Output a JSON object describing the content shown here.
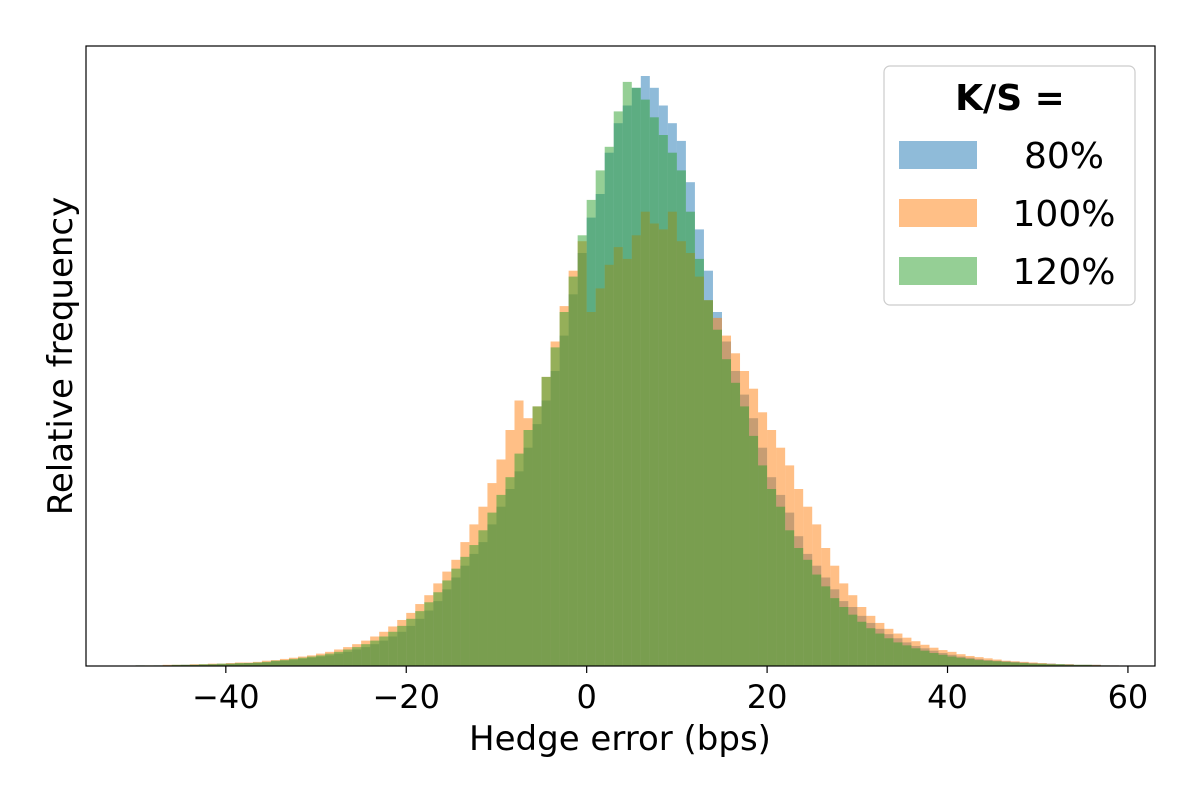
{
  "chart_data": {
    "type": "histogram",
    "xlabel": "Hedge error (bps)",
    "ylabel": "Relative frequency",
    "xlim": [
      -55.5,
      63
    ],
    "ylim": [
      0,
      1.0
    ],
    "xticks": [
      -40,
      -20,
      0,
      20,
      40,
      60
    ],
    "xtick_labels": [
      "−40",
      "−20",
      "0",
      "20",
      "40",
      "60"
    ],
    "yticks_visible": false,
    "grid": false,
    "bin_width": 1.0,
    "legend": {
      "title": "K/S =",
      "location": "upper-right"
    },
    "series": [
      {
        "name": "80%",
        "color": "#1f77b4",
        "opacity": 0.5,
        "x_start": -50,
        "values": [
          0.001,
          0,
          0.001,
          0.001,
          0.001,
          0.002,
          0.002,
          0.002,
          0.003,
          0.003,
          0.004,
          0.004,
          0.005,
          0.005,
          0.006,
          0.008,
          0.009,
          0.01,
          0.012,
          0.014,
          0.016,
          0.018,
          0.021,
          0.024,
          0.028,
          0.032,
          0.037,
          0.043,
          0.05,
          0.058,
          0.068,
          0.08,
          0.094,
          0.11,
          0.13,
          0.15,
          0.17,
          0.19,
          0.21,
          0.24,
          0.27,
          0.3,
          0.33,
          0.37,
          0.41,
          0.45,
          0.5,
          0.56,
          0.63,
          0.7,
          0.76,
          0.8,
          0.87,
          0.92,
          0.95,
          0.98,
          1.0,
          0.98,
          0.95,
          0.92,
          0.89,
          0.82,
          0.74,
          0.67,
          0.6,
          0.55,
          0.5,
          0.46,
          0.42,
          0.37,
          0.32,
          0.29,
          0.26,
          0.22,
          0.19,
          0.17,
          0.15,
          0.13,
          0.11,
          0.1,
          0.085,
          0.073,
          0.063,
          0.054,
          0.047,
          0.04,
          0.034,
          0.03,
          0.026,
          0.022,
          0.019,
          0.016,
          0.014,
          0.012,
          0.01,
          0.009,
          0.008,
          0.007,
          0.006,
          0.005,
          0.004,
          0.004,
          0.003,
          0.003,
          0.002,
          0.002,
          0.002,
          0.001,
          0.001
        ]
      },
      {
        "name": "100%",
        "color": "#ff7f0e",
        "opacity": 0.5,
        "x_start": -50,
        "values": [
          0.001,
          0.001,
          0.001,
          0.002,
          0.002,
          0.002,
          0.003,
          0.003,
          0.004,
          0.004,
          0.005,
          0.006,
          0.006,
          0.007,
          0.009,
          0.01,
          0.012,
          0.014,
          0.016,
          0.018,
          0.021,
          0.024,
          0.028,
          0.032,
          0.037,
          0.043,
          0.05,
          0.058,
          0.067,
          0.078,
          0.09,
          0.105,
          0.12,
          0.14,
          0.16,
          0.18,
          0.21,
          0.24,
          0.27,
          0.31,
          0.35,
          0.4,
          0.45,
          0.42,
          0.44,
          0.49,
          0.55,
          0.61,
          0.67,
          0.72,
          0.6,
          0.64,
          0.68,
          0.71,
          0.69,
          0.73,
          0.77,
          0.75,
          0.74,
          0.77,
          0.72,
          0.7,
          0.66,
          0.62,
          0.59,
          0.56,
          0.53,
          0.5,
          0.47,
          0.43,
          0.4,
          0.37,
          0.34,
          0.3,
          0.27,
          0.24,
          0.2,
          0.17,
          0.14,
          0.12,
          0.1,
          0.085,
          0.073,
          0.063,
          0.055,
          0.048,
          0.042,
          0.036,
          0.031,
          0.027,
          0.024,
          0.02,
          0.017,
          0.015,
          0.013,
          0.011,
          0.009,
          0.008,
          0.007,
          0.006,
          0.005,
          0.004,
          0.003,
          0.003,
          0.002,
          0.002,
          0.002,
          0.001,
          0.001
        ]
      },
      {
        "name": "120%",
        "color": "#2ca02c",
        "opacity": 0.5,
        "x_start": -50,
        "values": [
          0.001,
          0.001,
          0.001,
          0.001,
          0.002,
          0.002,
          0.002,
          0.003,
          0.003,
          0.004,
          0.004,
          0.005,
          0.005,
          0.006,
          0.007,
          0.009,
          0.01,
          0.012,
          0.014,
          0.016,
          0.018,
          0.021,
          0.024,
          0.028,
          0.032,
          0.037,
          0.043,
          0.05,
          0.058,
          0.068,
          0.08,
          0.093,
          0.108,
          0.125,
          0.145,
          0.165,
          0.185,
          0.205,
          0.23,
          0.26,
          0.29,
          0.32,
          0.36,
          0.4,
          0.44,
          0.49,
          0.54,
          0.6,
          0.66,
          0.73,
          0.79,
          0.84,
          0.88,
          0.94,
          0.99,
          0.98,
          0.96,
          0.93,
          0.9,
          0.87,
          0.84,
          0.77,
          0.69,
          0.62,
          0.57,
          0.52,
          0.48,
          0.44,
          0.39,
          0.34,
          0.3,
          0.27,
          0.23,
          0.2,
          0.18,
          0.155,
          0.135,
          0.115,
          0.1,
          0.087,
          0.075,
          0.064,
          0.055,
          0.047,
          0.04,
          0.035,
          0.03,
          0.026,
          0.022,
          0.019,
          0.016,
          0.014,
          0.012,
          0.01,
          0.009,
          0.008,
          0.007,
          0.006,
          0.005,
          0.004,
          0.004,
          0.003,
          0.003,
          0.002,
          0.002,
          0.002,
          0.001,
          0.001
        ]
      }
    ]
  }
}
